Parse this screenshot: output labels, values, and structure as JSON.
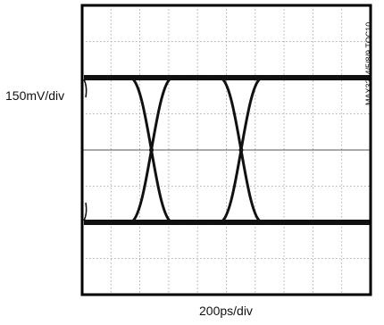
{
  "chart_data": {
    "type": "line",
    "subtype": "eye-diagram",
    "title": "",
    "ylabel": "150mV/div",
    "xlabel": "200ps/div",
    "part_number": "MAX3264/5/8/9 TOC10",
    "grid": {
      "x_divisions": 10,
      "y_divisions": 8,
      "dashed": true
    },
    "units": {
      "x": "ps",
      "y": "mV"
    },
    "xlim": [
      0,
      2000
    ],
    "ylim": [
      -600,
      600
    ],
    "levels": {
      "high": 300,
      "low": -300
    },
    "unit_interval_ps": 622,
    "crossings": [
      {
        "x": 480,
        "y": 0
      },
      {
        "x": 1102,
        "y": 0
      }
    ],
    "center_line_y": 0,
    "trace_color": "#111111"
  }
}
